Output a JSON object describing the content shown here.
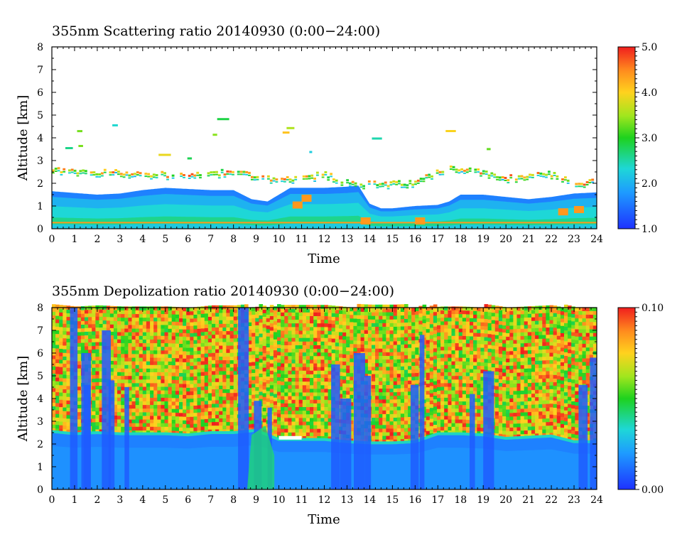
{
  "chart_data": [
    {
      "type": "heatmap",
      "title": "355nm Scattering ratio  20140930 (0:00−24:00)",
      "xlabel": "Time",
      "ylabel": "Altitude [km]",
      "xlim": [
        0,
        24
      ],
      "ylim": [
        0,
        8
      ],
      "x_ticks": [
        "0",
        "1",
        "2",
        "3",
        "4",
        "5",
        "6",
        "7",
        "8",
        "9",
        "10",
        "11",
        "12",
        "13",
        "14",
        "15",
        "16",
        "17",
        "18",
        "19",
        "20",
        "21",
        "22",
        "23",
        "24"
      ],
      "y_ticks": [
        "0",
        "1",
        "2",
        "3",
        "4",
        "5",
        "6",
        "7",
        "8"
      ],
      "colorbar": {
        "range": [
          1.0,
          5.0
        ],
        "tick_labels": [
          "5.0",
          "4.0",
          "3.0",
          "2.0",
          "1.0"
        ],
        "tick_values": [
          5.0,
          4.0,
          3.0,
          2.0,
          1.0
        ]
      },
      "features": {
        "boundary_layer_top_km": [
          [
            0,
            1.65
          ],
          [
            2,
            1.5
          ],
          [
            3,
            1.55
          ],
          [
            4,
            1.7
          ],
          [
            5,
            1.8
          ],
          [
            6,
            1.75
          ],
          [
            7,
            1.7
          ],
          [
            8,
            1.7
          ],
          [
            8.8,
            1.3
          ],
          [
            9.5,
            1.2
          ],
          [
            10,
            1.5
          ],
          [
            10.5,
            1.8
          ],
          [
            11,
            1.8
          ],
          [
            12,
            1.8
          ],
          [
            13,
            1.85
          ],
          [
            13.5,
            1.9
          ],
          [
            14,
            1.1
          ],
          [
            14.5,
            0.9
          ],
          [
            15,
            0.9
          ],
          [
            16,
            1.0
          ],
          [
            17,
            1.05
          ],
          [
            17.5,
            1.2
          ],
          [
            18,
            1.5
          ],
          [
            19,
            1.5
          ],
          [
            20,
            1.4
          ],
          [
            21,
            1.3
          ],
          [
            22,
            1.4
          ],
          [
            23,
            1.55
          ],
          [
            24,
            1.6
          ]
        ],
        "cloud_layer_km": [
          [
            0,
            2.6
          ],
          [
            1,
            2.45
          ],
          [
            2,
            2.5
          ],
          [
            3,
            2.45
          ],
          [
            4,
            2.4
          ],
          [
            5,
            2.35
          ],
          [
            6,
            2.35
          ],
          [
            7,
            2.45
          ],
          [
            8,
            2.45
          ],
          [
            9.6,
            2.2
          ],
          [
            10,
            2.1
          ],
          [
            11,
            2.2
          ],
          [
            12,
            2.4
          ],
          [
            13,
            2.0
          ],
          [
            14,
            1.95
          ],
          [
            15,
            1.95
          ],
          [
            16,
            2.0
          ],
          [
            17,
            2.6
          ],
          [
            18,
            2.6
          ],
          [
            19,
            2.45
          ],
          [
            20,
            2.2
          ],
          [
            21,
            2.3
          ],
          [
            22,
            2.4
          ],
          [
            23,
            2.0
          ],
          [
            24,
            2.1
          ]
        ]
      }
    },
    {
      "type": "heatmap",
      "title": "355nm Depolization ratio  20140930 (0:00−24:00)",
      "xlabel": "Time",
      "ylabel": "Altitude [km]",
      "xlim": [
        0,
        24
      ],
      "ylim": [
        0,
        8
      ],
      "x_ticks": [
        "0",
        "1",
        "2",
        "3",
        "4",
        "5",
        "6",
        "7",
        "8",
        "9",
        "10",
        "11",
        "12",
        "13",
        "14",
        "15",
        "16",
        "17",
        "18",
        "19",
        "20",
        "21",
        "22",
        "23",
        "24"
      ],
      "y_ticks": [
        "0",
        "1",
        "2",
        "3",
        "4",
        "5",
        "6",
        "7",
        "8"
      ],
      "colorbar": {
        "range": [
          0.0,
          0.1
        ],
        "tick_labels": [
          "0.10",
          "0.00"
        ],
        "tick_values": [
          0.1,
          0.0
        ]
      },
      "features": {
        "low_depol_layer_top_km": [
          [
            0,
            2.55
          ],
          [
            1,
            2.45
          ],
          [
            2,
            2.5
          ],
          [
            3,
            2.45
          ],
          [
            4,
            2.45
          ],
          [
            5,
            2.45
          ],
          [
            6,
            2.4
          ],
          [
            7,
            2.5
          ],
          [
            8,
            2.5
          ],
          [
            9,
            2.6
          ],
          [
            10,
            2.2
          ],
          [
            11,
            2.2
          ],
          [
            12,
            2.2
          ],
          [
            13,
            2.1
          ],
          [
            14,
            2.05
          ],
          [
            15,
            2.05
          ],
          [
            16,
            2.1
          ],
          [
            17,
            2.45
          ],
          [
            18,
            2.45
          ],
          [
            19,
            2.4
          ],
          [
            20,
            2.25
          ],
          [
            21,
            2.3
          ],
          [
            22,
            2.35
          ],
          [
            23,
            2.1
          ],
          [
            24,
            2.1
          ]
        ]
      }
    }
  ]
}
